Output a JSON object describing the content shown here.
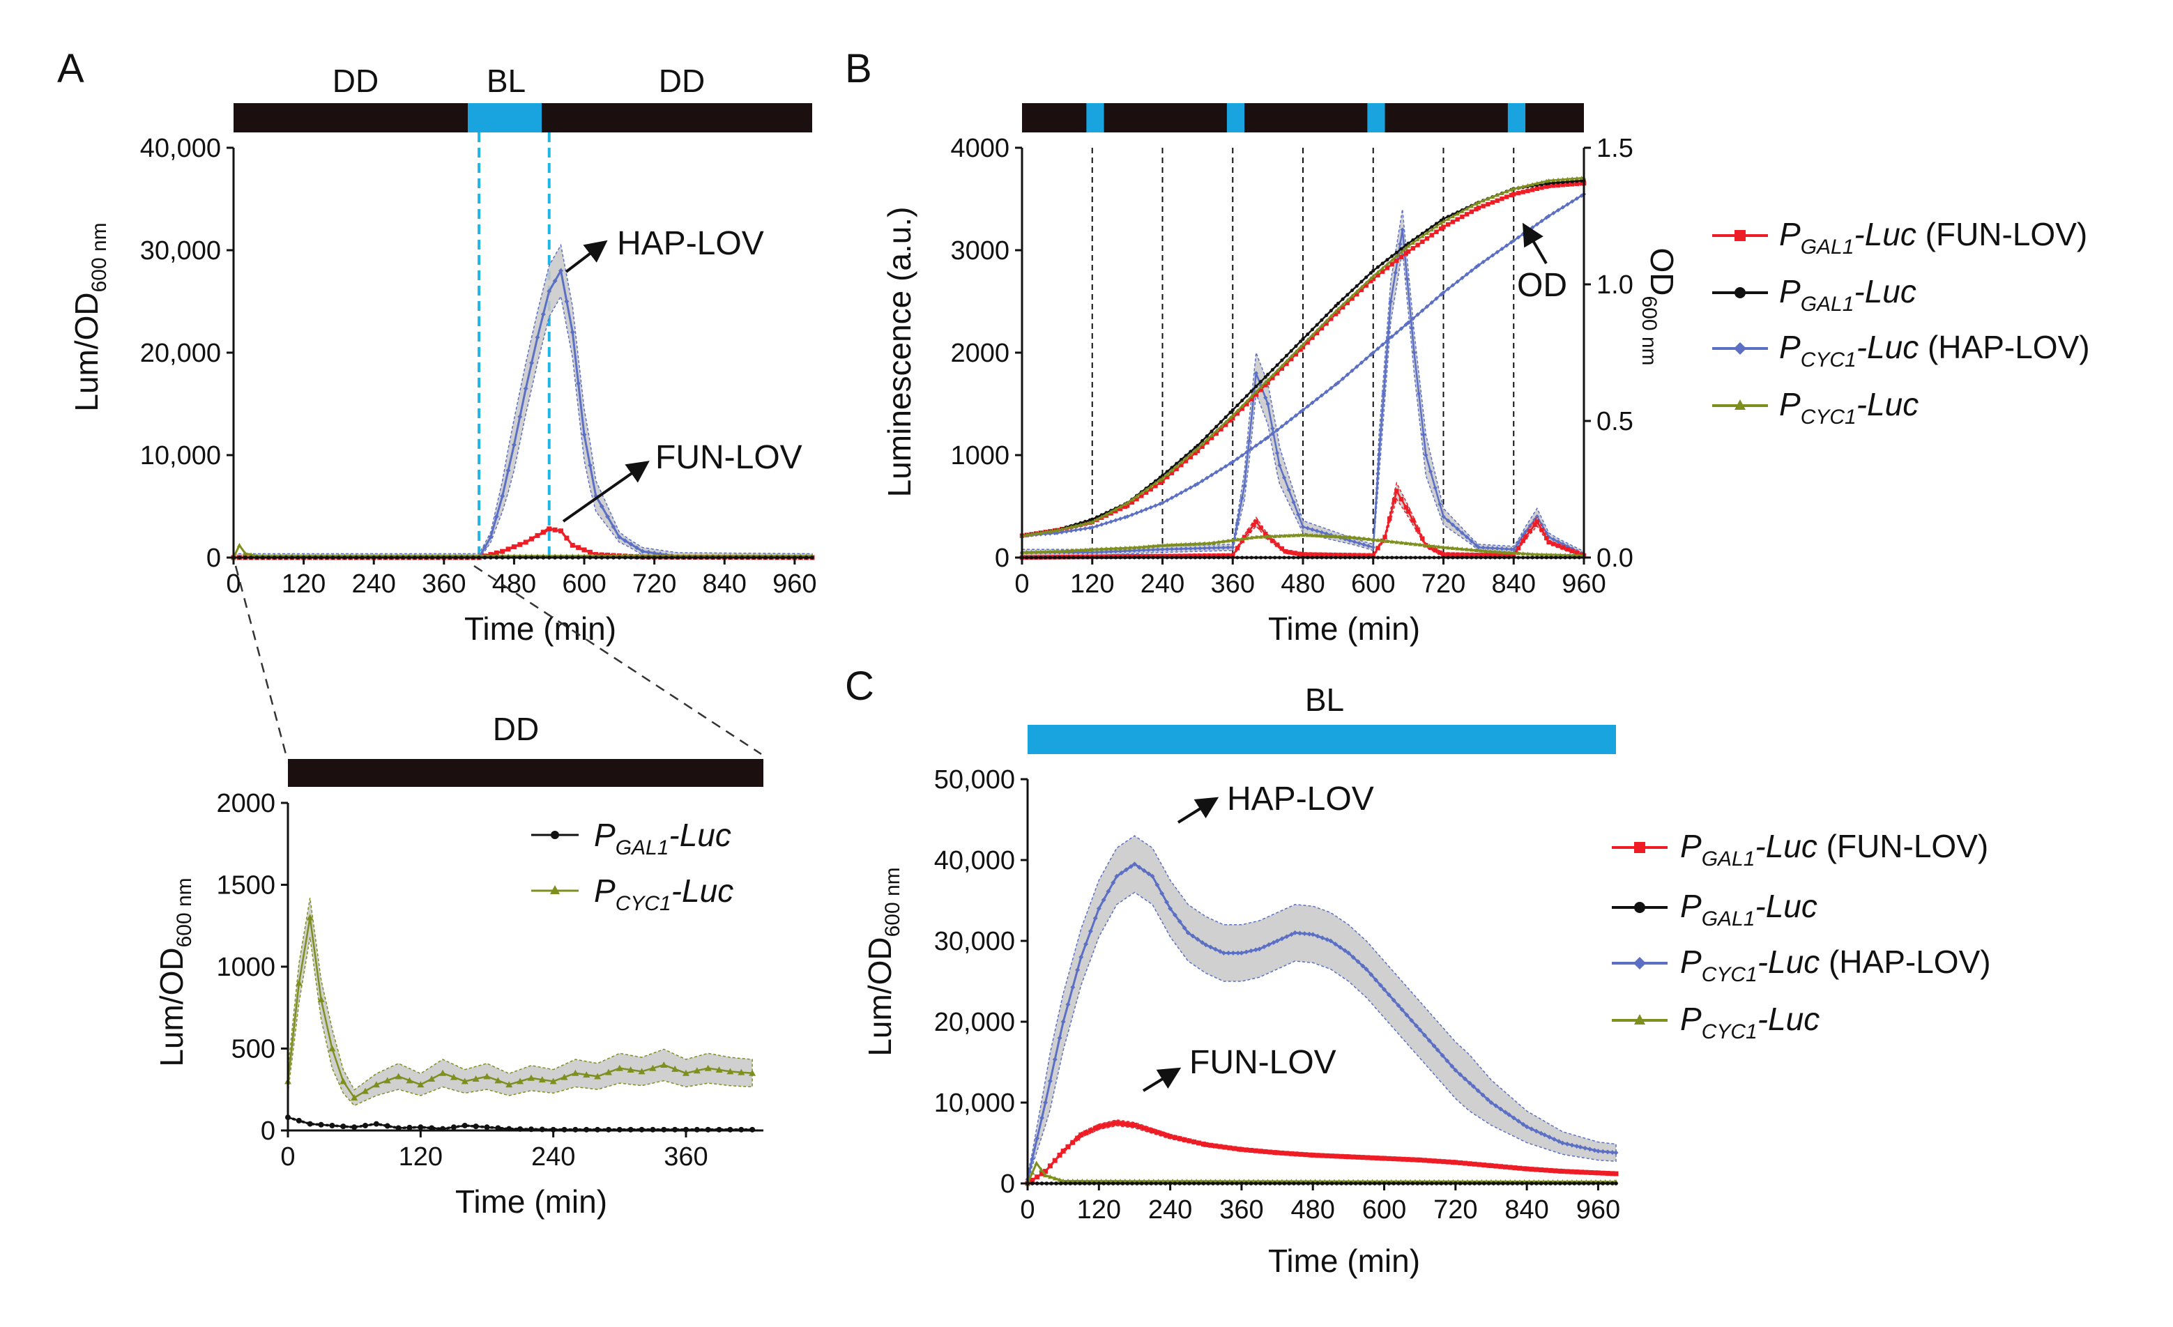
{
  "colors": {
    "dark": "#1b0f0f",
    "blue_light": "#1aa4df",
    "fun_red": "#ee1c25",
    "gal_black": "#111111",
    "hap_blue": "#5b6fc4",
    "cyc_olive": "#7f8f1f",
    "band_gray": "#c8c8c8",
    "cyan_dash": "#1fb6e6"
  },
  "legend": {
    "fun": {
      "p": "P",
      "sub": "GAL1",
      "luc": "-Luc",
      "suffix": " (FUN-LOV)"
    },
    "gal": {
      "p": "P",
      "sub": "GAL1",
      "luc": "-Luc",
      "suffix": ""
    },
    "hap": {
      "p": "P",
      "sub": "CYC1",
      "luc": "-Luc",
      "suffix": " (HAP-LOV)"
    },
    "cyc": {
      "p": "P",
      "sub": "CYC1",
      "luc": "-Luc",
      "suffix": ""
    }
  },
  "chart_data": [
    {
      "panel": "A",
      "type": "line",
      "light_bar": {
        "segments": [
          {
            "label": "DD",
            "from": 0,
            "to": 420
          },
          {
            "label": "BL",
            "from": 420,
            "to": 540
          },
          {
            "label": "DD",
            "from": 540,
            "to": 990
          }
        ]
      },
      "xlabel": "Time (min)",
      "ylabel": "Lum/OD",
      "ylabel_sub": "600 nm",
      "xlim": [
        0,
        990
      ],
      "ylim": [
        0,
        40000
      ],
      "xticks": [
        0,
        120,
        240,
        360,
        480,
        600,
        720,
        840,
        960
      ],
      "yticks": [
        0,
        10000,
        20000,
        30000,
        40000
      ],
      "ytick_labels": [
        "0",
        "10,000",
        "20,000",
        "30,000",
        "40,000"
      ],
      "annotations": [
        "HAP-LOV",
        "FUN-LOV"
      ],
      "series": [
        {
          "name": "HAP-LOV",
          "x": [
            0,
            420,
            440,
            460,
            480,
            500,
            520,
            540,
            560,
            580,
            600,
            620,
            660,
            700,
            760,
            990
          ],
          "y": [
            0,
            0,
            2000,
            6000,
            11000,
            16500,
            21500,
            26000,
            28000,
            22000,
            12000,
            6000,
            2000,
            600,
            100,
            0
          ],
          "band": 2500
        },
        {
          "name": "FUN-LOV",
          "x": [
            0,
            420,
            460,
            500,
            540,
            560,
            580,
            620,
            700,
            990
          ],
          "y": [
            0,
            0,
            600,
            1500,
            2800,
            2600,
            1200,
            300,
            50,
            0
          ],
          "band": 500
        },
        {
          "name": "PCYC1-Luc",
          "x": [
            0,
            10,
            20,
            40,
            990
          ],
          "y": [
            0,
            1200,
            400,
            150,
            150
          ],
          "band": 0
        },
        {
          "name": "PGAL1-Luc",
          "x": [
            0,
            990
          ],
          "y": [
            0,
            0
          ],
          "band": 0
        }
      ]
    },
    {
      "panel": "A-inset",
      "type": "line",
      "light_bar": {
        "segments": [
          {
            "label": "DD",
            "from": 0,
            "to": 420
          }
        ]
      },
      "xlabel": "Time (min)",
      "ylabel": "Lum/OD",
      "ylabel_sub": "600 nm",
      "xlim": [
        0,
        430
      ],
      "ylim": [
        0,
        2000
      ],
      "xticks": [
        0,
        120,
        240,
        360
      ],
      "yticks": [
        0,
        500,
        1000,
        1500,
        2000
      ],
      "series": [
        {
          "name": "PCYC1-Luc",
          "x": [
            0,
            10,
            20,
            30,
            40,
            50,
            60,
            80,
            100,
            120,
            140,
            160,
            180,
            200,
            220,
            240,
            260,
            280,
            300,
            320,
            340,
            360,
            380,
            400,
            420
          ],
          "y": [
            300,
            900,
            1300,
            800,
            500,
            300,
            200,
            280,
            330,
            280,
            350,
            300,
            330,
            280,
            320,
            300,
            350,
            330,
            380,
            360,
            400,
            350,
            380,
            360,
            350
          ],
          "band": 120
        },
        {
          "name": "PGAL1-Luc",
          "x": [
            0,
            10,
            20,
            40,
            60,
            80,
            100,
            120,
            140,
            160,
            180,
            200,
            240,
            300,
            360,
            420
          ],
          "y": [
            80,
            60,
            40,
            30,
            20,
            40,
            15,
            20,
            10,
            30,
            20,
            10,
            5,
            5,
            5,
            5
          ],
          "band": 30
        }
      ]
    },
    {
      "panel": "B",
      "type": "line",
      "light_bar": {
        "pulses": [
          120,
          360,
          600,
          840
        ],
        "pulse_width": 30
      },
      "xlabel": "Time (min)",
      "ylabel": "Luminescence (a.u.)",
      "y2label": "OD",
      "y2label_sub": "600 nm",
      "od_annotation": "OD",
      "xlim": [
        0,
        960
      ],
      "ylim": [
        0,
        4000
      ],
      "y2lim": [
        0,
        1.5
      ],
      "xticks": [
        0,
        120,
        240,
        360,
        480,
        600,
        720,
        840,
        960
      ],
      "yticks": [
        0,
        1000,
        2000,
        3000,
        4000
      ],
      "y2ticks": [
        0,
        0.5,
        1.0,
        1.5
      ],
      "y2tick_labels": [
        "0.0",
        "0.5",
        "1.0",
        "1.5"
      ],
      "vlines": [
        120,
        240,
        360,
        480,
        600,
        720,
        840
      ],
      "series": [
        {
          "name": "HAP-LOV lum",
          "x": [
            0,
            120,
            240,
            360,
            380,
            400,
            420,
            440,
            480,
            600,
            610,
            630,
            650,
            670,
            690,
            720,
            780,
            840,
            860,
            880,
            900,
            960
          ],
          "y": [
            50,
            50,
            80,
            100,
            700,
            1800,
            1500,
            900,
            300,
            100,
            1000,
            2500,
            3200,
            2000,
            1000,
            400,
            100,
            80,
            250,
            400,
            200,
            30
          ],
          "band": 200
        },
        {
          "name": "FUN-LOV lum",
          "x": [
            0,
            360,
            380,
            400,
            420,
            450,
            480,
            600,
            620,
            640,
            660,
            690,
            720,
            840,
            860,
            880,
            900,
            960
          ],
          "y": [
            0,
            20,
            200,
            350,
            200,
            60,
            30,
            20,
            200,
            650,
            450,
            120,
            30,
            20,
            200,
            350,
            150,
            20
          ],
          "band": 120
        },
        {
          "name": "PCYC1-Luc lum",
          "x": [
            0,
            60,
            120,
            200,
            240,
            320,
            360,
            400,
            480,
            560,
            640,
            720,
            800,
            880,
            960
          ],
          "y": [
            50,
            60,
            80,
            100,
            120,
            140,
            170,
            200,
            220,
            200,
            150,
            100,
            60,
            30,
            20
          ],
          "band": 40
        },
        {
          "name": "PGAL1-Luc lum",
          "x": [
            0,
            960
          ],
          "y": [
            0,
            0
          ],
          "band": 0
        },
        {
          "name": "FUN-LOV OD",
          "x": [
            0,
            60,
            120,
            180,
            240,
            300,
            360,
            420,
            480,
            540,
            600,
            660,
            720,
            780,
            840,
            900,
            960
          ],
          "y": [
            0.08,
            0.1,
            0.13,
            0.19,
            0.28,
            0.39,
            0.51,
            0.64,
            0.77,
            0.9,
            1.02,
            1.12,
            1.21,
            1.28,
            1.33,
            1.36,
            1.37
          ],
          "axis": "y2",
          "band": 0
        },
        {
          "name": "PGAL1-Luc OD",
          "x": [
            0,
            60,
            120,
            180,
            240,
            300,
            360,
            420,
            480,
            540,
            600,
            660,
            720,
            780,
            840,
            900,
            960
          ],
          "y": [
            0.08,
            0.1,
            0.14,
            0.2,
            0.3,
            0.41,
            0.54,
            0.67,
            0.8,
            0.93,
            1.05,
            1.15,
            1.24,
            1.3,
            1.35,
            1.37,
            1.38
          ],
          "axis": "y2",
          "band": 0
        },
        {
          "name": "HAP-LOV OD",
          "x": [
            0,
            60,
            120,
            180,
            240,
            300,
            360,
            420,
            480,
            540,
            600,
            660,
            720,
            780,
            840,
            900,
            960
          ],
          "y": [
            0.08,
            0.09,
            0.11,
            0.15,
            0.2,
            0.27,
            0.35,
            0.44,
            0.54,
            0.64,
            0.75,
            0.86,
            0.97,
            1.07,
            1.16,
            1.25,
            1.33
          ],
          "axis": "y2",
          "band": 0
        },
        {
          "name": "PCYC1-Luc OD",
          "x": [
            0,
            60,
            120,
            180,
            240,
            300,
            360,
            420,
            480,
            540,
            600,
            660,
            720,
            780,
            840,
            900,
            960
          ],
          "y": [
            0.08,
            0.1,
            0.13,
            0.2,
            0.29,
            0.4,
            0.52,
            0.65,
            0.78,
            0.91,
            1.03,
            1.14,
            1.23,
            1.3,
            1.35,
            1.38,
            1.39
          ],
          "axis": "y2",
          "band": 0
        }
      ]
    },
    {
      "panel": "C",
      "type": "line",
      "light_bar": {
        "segments": [
          {
            "label": "BL",
            "from": 0,
            "to": 990
          }
        ]
      },
      "xlabel": "Time (min)",
      "ylabel": "Lum/OD",
      "ylabel_sub": "600 nm",
      "xlim": [
        0,
        990
      ],
      "ylim": [
        0,
        50000
      ],
      "xticks": [
        0,
        120,
        240,
        360,
        480,
        600,
        720,
        840,
        960
      ],
      "yticks": [
        0,
        10000,
        20000,
        30000,
        40000,
        50000
      ],
      "ytick_labels": [
        "0",
        "10,000",
        "20,000",
        "30,000",
        "40,000",
        "50,000"
      ],
      "annotations": [
        "HAP-LOV",
        "FUN-LOV"
      ],
      "series": [
        {
          "name": "HAP-LOV",
          "x": [
            0,
            30,
            60,
            90,
            120,
            150,
            180,
            210,
            240,
            270,
            300,
            330,
            360,
            390,
            420,
            450,
            480,
            510,
            540,
            570,
            600,
            630,
            660,
            690,
            720,
            750,
            780,
            810,
            840,
            870,
            900,
            930,
            960,
            990
          ],
          "y": [
            500,
            10000,
            20000,
            28000,
            34000,
            38000,
            39500,
            38000,
            34000,
            31000,
            29500,
            28500,
            28500,
            29000,
            30000,
            31000,
            30800,
            30000,
            28500,
            26500,
            24000,
            21500,
            19000,
            16500,
            14000,
            12000,
            10000,
            8500,
            7000,
            6000,
            5000,
            4500,
            4000,
            3800
          ],
          "band": 3500
        },
        {
          "name": "FUN-LOV",
          "x": [
            0,
            30,
            60,
            90,
            120,
            150,
            180,
            210,
            240,
            300,
            360,
            420,
            480,
            540,
            600,
            660,
            720,
            780,
            840,
            900,
            960,
            990
          ],
          "y": [
            0,
            1500,
            4000,
            6000,
            7000,
            7500,
            7200,
            6500,
            5800,
            4800,
            4200,
            3800,
            3500,
            3300,
            3100,
            2900,
            2600,
            2200,
            1800,
            1500,
            1300,
            1200
          ],
          "band": 600
        },
        {
          "name": "PCYC1-Luc",
          "x": [
            0,
            15,
            30,
            60,
            990
          ],
          "y": [
            0,
            2500,
            1000,
            300,
            200
          ],
          "band": 0
        },
        {
          "name": "PGAL1-Luc",
          "x": [
            0,
            990
          ],
          "y": [
            0,
            0
          ],
          "band": 0
        }
      ]
    }
  ]
}
